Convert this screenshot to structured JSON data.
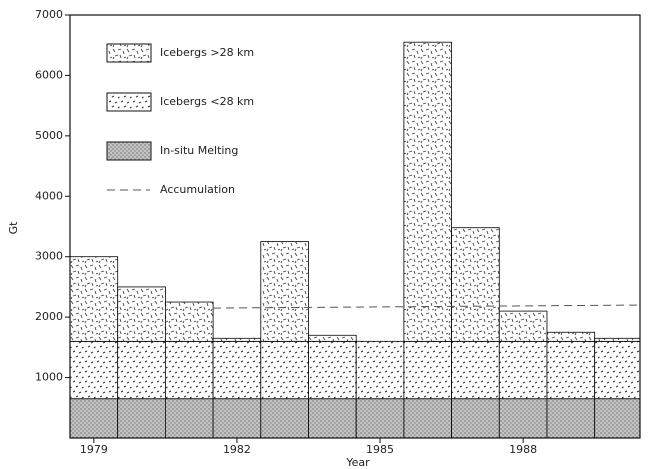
{
  "chart_data": {
    "type": "stacked-histogram",
    "x": [
      1979,
      1980,
      1981,
      1982,
      1983,
      1984,
      1985,
      1986,
      1987,
      1988,
      1989,
      1990
    ],
    "series": [
      {
        "name": "In-situ Melting",
        "color": "#000000",
        "values": [
          650,
          650,
          650,
          650,
          650,
          650,
          650,
          650,
          650,
          650,
          650,
          650
        ]
      },
      {
        "name": "Icebergs <28 km",
        "color": "#000000",
        "values": [
          950,
          950,
          950,
          950,
          950,
          950,
          950,
          950,
          950,
          950,
          950,
          950
        ]
      },
      {
        "name": "Icebergs >28 km",
        "color": "#000000",
        "values": [
          1400,
          900,
          650,
          50,
          1650,
          100,
          0,
          4950,
          1880,
          500,
          150,
          50
        ]
      }
    ],
    "lines": [
      {
        "name": "Accumulation",
        "color": "#555555",
        "x": [
          1981.5,
          1990.45
        ],
        "values": [
          2150,
          2200
        ]
      }
    ],
    "legend_order": [
      2,
      1,
      0
    ],
    "xlabel": "Year",
    "ylabel": "Gt",
    "xlim": [
      1978.5,
      1990.45
    ],
    "xticks": [
      1979,
      1982,
      1985,
      1988
    ],
    "ylim": [
      0,
      7000
    ],
    "yticks": [
      1000,
      2000,
      3000,
      4000,
      5000,
      6000,
      7000
    ]
  }
}
